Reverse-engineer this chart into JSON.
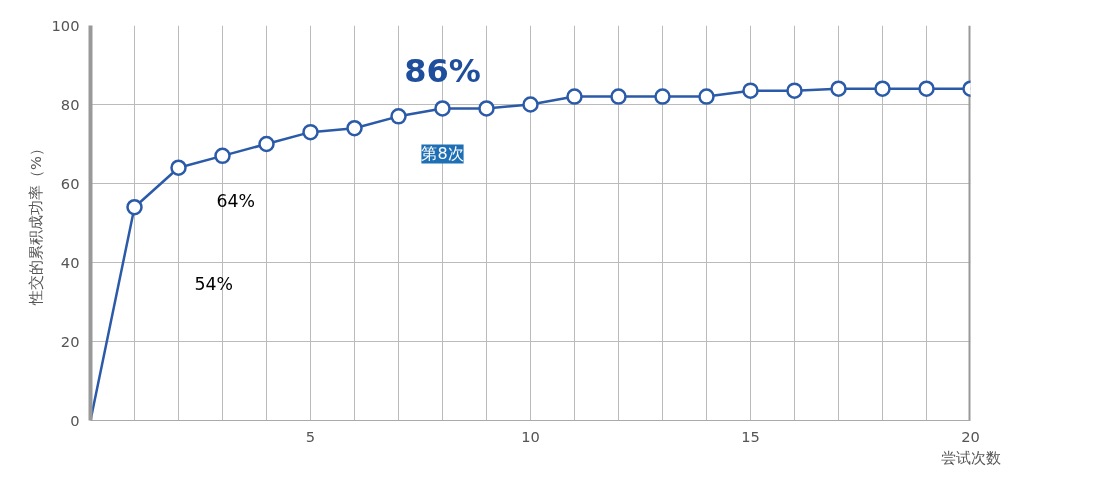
{
  "chart_data": {
    "type": "line",
    "xlabel": "尝试次数",
    "ylabel": "性交的累积成功率（%）",
    "x": [
      0,
      1,
      2,
      3,
      4,
      5,
      6,
      7,
      8,
      9,
      10,
      11,
      12,
      13,
      14,
      15,
      16,
      17,
      18,
      19,
      20
    ],
    "series": [
      {
        "color": "#2b5aa8",
        "values": [
          0,
          54,
          64,
          67,
          70,
          73,
          74,
          77,
          79,
          79,
          80,
          82,
          82,
          82,
          82,
          83.5,
          83.5,
          84,
          84,
          84,
          84
        ]
      }
    ],
    "xlim": [
      0,
      20
    ],
    "ylim": [
      0,
      100
    ],
    "xticks": [
      {
        "value": 0,
        "label": null
      },
      {
        "value": 1,
        "label": null
      },
      {
        "value": 2,
        "label": null
      },
      {
        "value": 3,
        "label": null
      },
      {
        "value": 4,
        "label": null
      },
      5,
      {
        "value": 6,
        "label": null
      },
      {
        "value": 7,
        "label": null
      },
      {
        "value": 8,
        "label": null
      },
      {
        "value": 9,
        "label": null
      },
      10,
      {
        "value": 11,
        "label": null
      },
      {
        "value": 12,
        "label": null
      },
      {
        "value": 13,
        "label": null
      },
      {
        "value": 14,
        "label": null
      },
      15,
      {
        "value": 16,
        "label": null
      },
      {
        "value": 17,
        "label": null
      },
      {
        "value": 18,
        "label": null
      },
      {
        "value": 19,
        "label": null
      },
      20
    ],
    "yticks": [
      0,
      20,
      40,
      60,
      80,
      100
    ],
    "grid": true,
    "marker": "circle",
    "line_style": "solid",
    "annotations": [
      {
        "text": "86%",
        "x": 8,
        "y": 79
      },
      {
        "text": "第8次",
        "x": 8,
        "y": 79
      },
      "64%",
      "54%"
    ]
  }
}
